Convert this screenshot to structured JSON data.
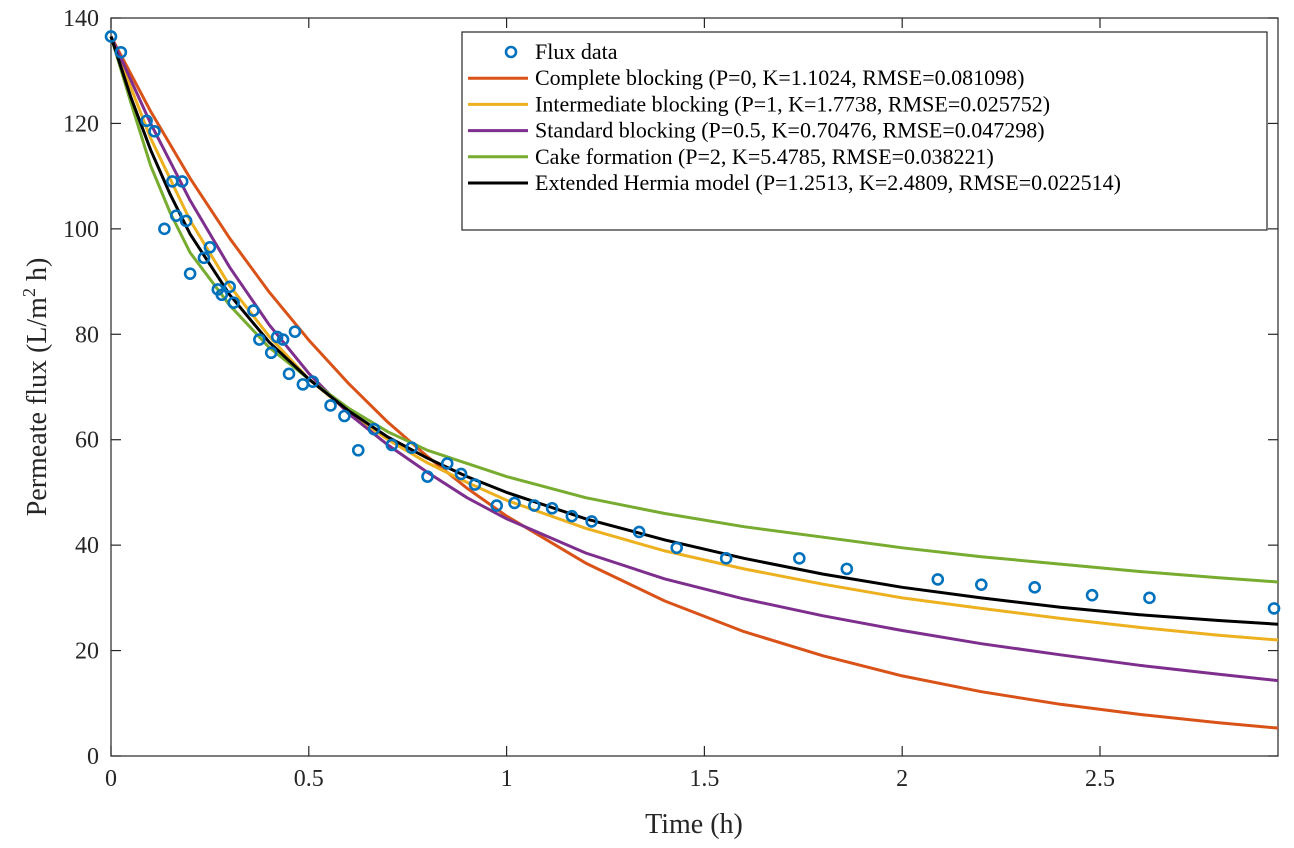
{
  "chart_data": {
    "type": "line",
    "xlabel": "Time (h)",
    "ylabel": "Permeate flux (L/m² h)",
    "ylabel_parts": {
      "pre": "Permeate flux (L/m",
      "sup": "2",
      "post": " h)"
    },
    "xlim": [
      0,
      2.95
    ],
    "ylim": [
      0,
      140
    ],
    "x_ticks": [
      0,
      0.5,
      1,
      1.5,
      2,
      2.5
    ],
    "y_ticks": [
      0,
      20,
      40,
      60,
      80,
      100,
      120,
      140
    ],
    "grid": false,
    "legend_position": "top-right",
    "scatter": {
      "name": "Flux data",
      "color": "#0072BD",
      "x": [
        0.0,
        0.025,
        0.09,
        0.11,
        0.135,
        0.155,
        0.165,
        0.18,
        0.19,
        0.2,
        0.235,
        0.25,
        0.27,
        0.28,
        0.3,
        0.31,
        0.36,
        0.375,
        0.405,
        0.42,
        0.435,
        0.45,
        0.465,
        0.485,
        0.51,
        0.555,
        0.59,
        0.625,
        0.665,
        0.71,
        0.76,
        0.8,
        0.85,
        0.885,
        0.92,
        0.975,
        1.02,
        1.07,
        1.115,
        1.165,
        1.215,
        1.335,
        1.43,
        1.555,
        1.74,
        1.86,
        2.09,
        2.2,
        2.335,
        2.48,
        2.625,
        2.94
      ],
      "y": [
        136.5,
        133.5,
        120.5,
        118.5,
        100.0,
        109.0,
        102.5,
        109.0,
        101.5,
        91.5,
        94.5,
        96.5,
        88.5,
        87.5,
        89.0,
        86.0,
        84.5,
        79.0,
        76.5,
        79.5,
        79.0,
        72.5,
        80.5,
        70.5,
        71.0,
        66.5,
        64.5,
        58.0,
        62.0,
        59.0,
        58.5,
        53.0,
        55.5,
        53.5,
        51.5,
        47.5,
        48.0,
        47.5,
        47.0,
        45.5,
        44.5,
        42.5,
        39.5,
        37.5,
        37.5,
        35.5,
        33.5,
        32.5,
        32.0,
        30.5,
        30.0,
        28.0
      ]
    },
    "series": [
      {
        "name": "Complete blocking (P=0, K=1.1024, RMSE=0.081098)",
        "color": "#D95319",
        "x": [
          0,
          0.1,
          0.2,
          0.3,
          0.4,
          0.5,
          0.6,
          0.7,
          0.8,
          0.9,
          1.0,
          1.2,
          1.4,
          1.6,
          1.8,
          2.0,
          2.2,
          2.4,
          2.6,
          2.8,
          2.95
        ],
        "y": [
          136.5,
          122.3,
          109.6,
          98.2,
          88.0,
          78.9,
          70.7,
          63.3,
          56.8,
          50.8,
          45.5,
          36.6,
          29.4,
          23.6,
          19.0,
          15.2,
          12.2,
          9.8,
          7.9,
          6.3,
          5.3
        ]
      },
      {
        "name": "Intermediate blocking (P=1, K=1.7738, RMSE=0.025752)",
        "color": "#EDB120",
        "x": [
          0,
          0.1,
          0.2,
          0.3,
          0.4,
          0.5,
          0.6,
          0.7,
          0.8,
          0.9,
          1.0,
          1.2,
          1.4,
          1.6,
          1.8,
          2.0,
          2.2,
          2.4,
          2.6,
          2.8,
          2.95
        ],
        "y": [
          136.5,
          117.2,
          101.6,
          89.2,
          79.6,
          71.5,
          65.3,
          60.0,
          55.6,
          51.9,
          48.5,
          43.2,
          38.9,
          35.5,
          32.6,
          30.0,
          28.0,
          26.1,
          24.4,
          22.9,
          22.0
        ]
      },
      {
        "name": "Standard blocking (P=0.5, K=0.70476, RMSE=0.047298)",
        "color": "#7E2F8E",
        "x": [
          0,
          0.1,
          0.2,
          0.3,
          0.4,
          0.5,
          0.6,
          0.7,
          0.8,
          0.9,
          1.0,
          1.2,
          1.4,
          1.6,
          1.8,
          2.0,
          2.2,
          2.4,
          2.6,
          2.8,
          2.95
        ],
        "y": [
          136.5,
          120.0,
          105.4,
          92.7,
          81.8,
          72.6,
          65.0,
          59.0,
          53.8,
          49.0,
          45.0,
          38.5,
          33.6,
          29.8,
          26.6,
          23.8,
          21.3,
          19.2,
          17.2,
          15.5,
          14.3
        ]
      },
      {
        "name": "Cake formation (P=2, K=5.4785, RMSE=0.038221)",
        "color": "#77AC30",
        "x": [
          0,
          0.05,
          0.1,
          0.15,
          0.2,
          0.3,
          0.4,
          0.5,
          0.6,
          0.7,
          0.8,
          0.9,
          1.0,
          1.2,
          1.4,
          1.6,
          1.8,
          2.0,
          2.2,
          2.4,
          2.6,
          2.8,
          2.95
        ],
        "y": [
          136.5,
          124.0,
          112.0,
          103.0,
          95.5,
          85.5,
          77.5,
          71.5,
          66.0,
          61.5,
          58.0,
          55.5,
          53.0,
          49.0,
          46.0,
          43.5,
          41.5,
          39.5,
          37.8,
          36.4,
          35.0,
          33.8,
          33.0
        ]
      },
      {
        "name": "Extended Hermia model (P=1.2513, K=2.4809, RMSE=0.022514)",
        "color": "#000000",
        "x": [
          0,
          0.05,
          0.1,
          0.15,
          0.2,
          0.3,
          0.4,
          0.5,
          0.6,
          0.7,
          0.8,
          0.9,
          1.0,
          1.2,
          1.4,
          1.6,
          1.8,
          2.0,
          2.2,
          2.4,
          2.6,
          2.8,
          2.95
        ],
        "y": [
          136.5,
          125.0,
          115.0,
          106.5,
          99.0,
          87.5,
          78.5,
          71.5,
          65.5,
          60.5,
          56.5,
          53.0,
          50.0,
          45.0,
          41.0,
          37.5,
          34.5,
          32.0,
          30.0,
          28.2,
          26.8,
          25.7,
          25.0
        ]
      }
    ]
  }
}
